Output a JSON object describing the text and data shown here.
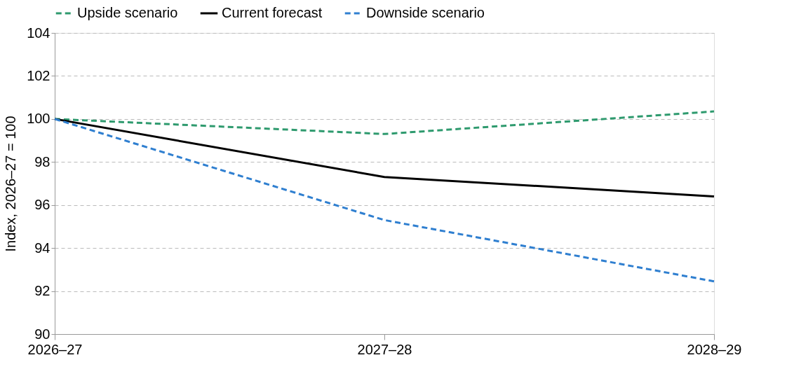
{
  "chart_data": {
    "type": "line",
    "ylabel": "Index, 2026–27 = 100",
    "categories": [
      "2026–27",
      "2027–28",
      "2028–29"
    ],
    "series": [
      {
        "name": "Upside scenario",
        "color": "#2e9a6e",
        "line_style": "dashed",
        "values": [
          100,
          99.3,
          100.35
        ]
      },
      {
        "name": "Current forecast",
        "color": "#000000",
        "line_style": "solid",
        "values": [
          100,
          97.3,
          96.4
        ]
      },
      {
        "name": "Downside scenario",
        "color": "#2f7fd0",
        "line_style": "dashed",
        "values": [
          100,
          95.3,
          92.45
        ]
      }
    ],
    "ylim": [
      90,
      104
    ],
    "yticks": [
      90,
      92,
      94,
      96,
      98,
      100,
      102,
      104
    ],
    "grid": "y",
    "legend": "top",
    "marker": "none"
  }
}
